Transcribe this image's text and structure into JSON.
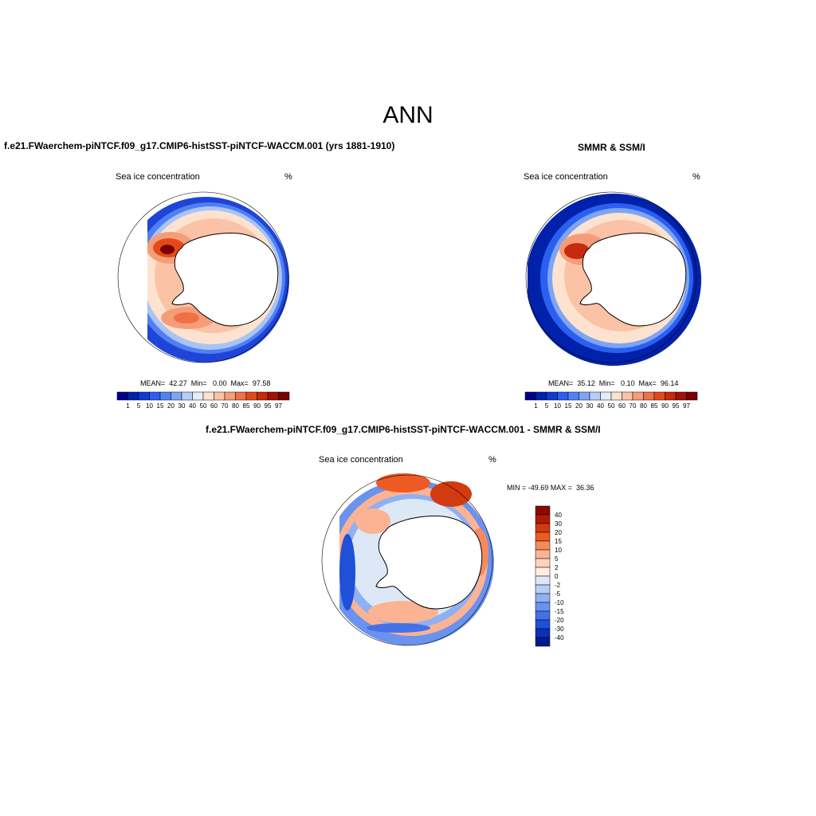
{
  "figure_title": "ANN",
  "panels": [
    {
      "case": "f.e21.FWaerchem-piNTCF.f09_g17.CMIP6-histSST-piNTCF-WACCM.001 (yrs 1881-1910)",
      "variable": "Sea ice concentration",
      "units": "%",
      "stats_text": "MEAN=  42.27  Min=   0.00  Max=  97.58",
      "mean": 42.27,
      "min": 0.0,
      "max": 97.58
    },
    {
      "case": "SMMR & SSM/I",
      "variable": "Sea ice concentration",
      "units": "%",
      "stats_text": "MEAN=  35.12  Min=   0.10  Max=  96.14",
      "mean": 35.12,
      "min": 0.1,
      "max": 96.14
    },
    {
      "case": "f.e21.FWaerchem-piNTCF.f09_g17.CMIP6-histSST-piNTCF-WACCM.001 - SMMR & SSM/I",
      "variable": "Sea ice concentration",
      "units": "%",
      "stats_text": "MIN = -49.69 MAX =  36.36",
      "min": -49.69,
      "max": 36.36
    }
  ],
  "chart_data": [
    {
      "type": "heatmap",
      "map_projection": "south polar stereographic",
      "colorbar_orientation": "horizontal",
      "colorbar_levels": [
        "1",
        "5",
        "10",
        "15",
        "20",
        "30",
        "40",
        "50",
        "60",
        "70",
        "80",
        "85",
        "90",
        "95",
        "97"
      ],
      "colors": [
        "#00008b",
        "#0022aa",
        "#0e3bd4",
        "#2b5ff0",
        "#5181f2",
        "#7ea4f5",
        "#b7cdf7",
        "#e4ecf8",
        "#fde3cf",
        "#fbc2a6",
        "#f59d78",
        "#ef7145",
        "#e24a1c",
        "#c72a0c",
        "#9f1204",
        "#7a0000"
      ]
    },
    {
      "type": "heatmap",
      "map_projection": "south polar stereographic",
      "colorbar_orientation": "horizontal",
      "colorbar_levels": [
        "1",
        "5",
        "10",
        "15",
        "20",
        "30",
        "40",
        "50",
        "60",
        "70",
        "80",
        "85",
        "90",
        "95",
        "97"
      ],
      "colors": [
        "#00008b",
        "#0022aa",
        "#0e3bd4",
        "#2b5ff0",
        "#5181f2",
        "#7ea4f5",
        "#b7cdf7",
        "#e4ecf8",
        "#fde3cf",
        "#fbc2a6",
        "#f59d78",
        "#ef7145",
        "#e24a1c",
        "#c72a0c",
        "#9f1204",
        "#7a0000"
      ]
    },
    {
      "type": "heatmap",
      "map_projection": "south polar stereographic",
      "colorbar_orientation": "vertical",
      "colorbar_levels": [
        "40",
        "30",
        "20",
        "15",
        "10",
        "5",
        "2",
        "0",
        "-2",
        "-5",
        "-10",
        "-15",
        "-20",
        "-30",
        "-40"
      ],
      "colors": [
        "#8b0a00",
        "#b01a04",
        "#d23a10",
        "#ed5a24",
        "#f88a5a",
        "#fbb394",
        "#fdd3bd",
        "#feeedd",
        "#dde8f6",
        "#b7cdf6",
        "#8fb0f3",
        "#6a92ef",
        "#4472e6",
        "#2050d8",
        "#0632b8",
        "#001c8c"
      ]
    }
  ]
}
